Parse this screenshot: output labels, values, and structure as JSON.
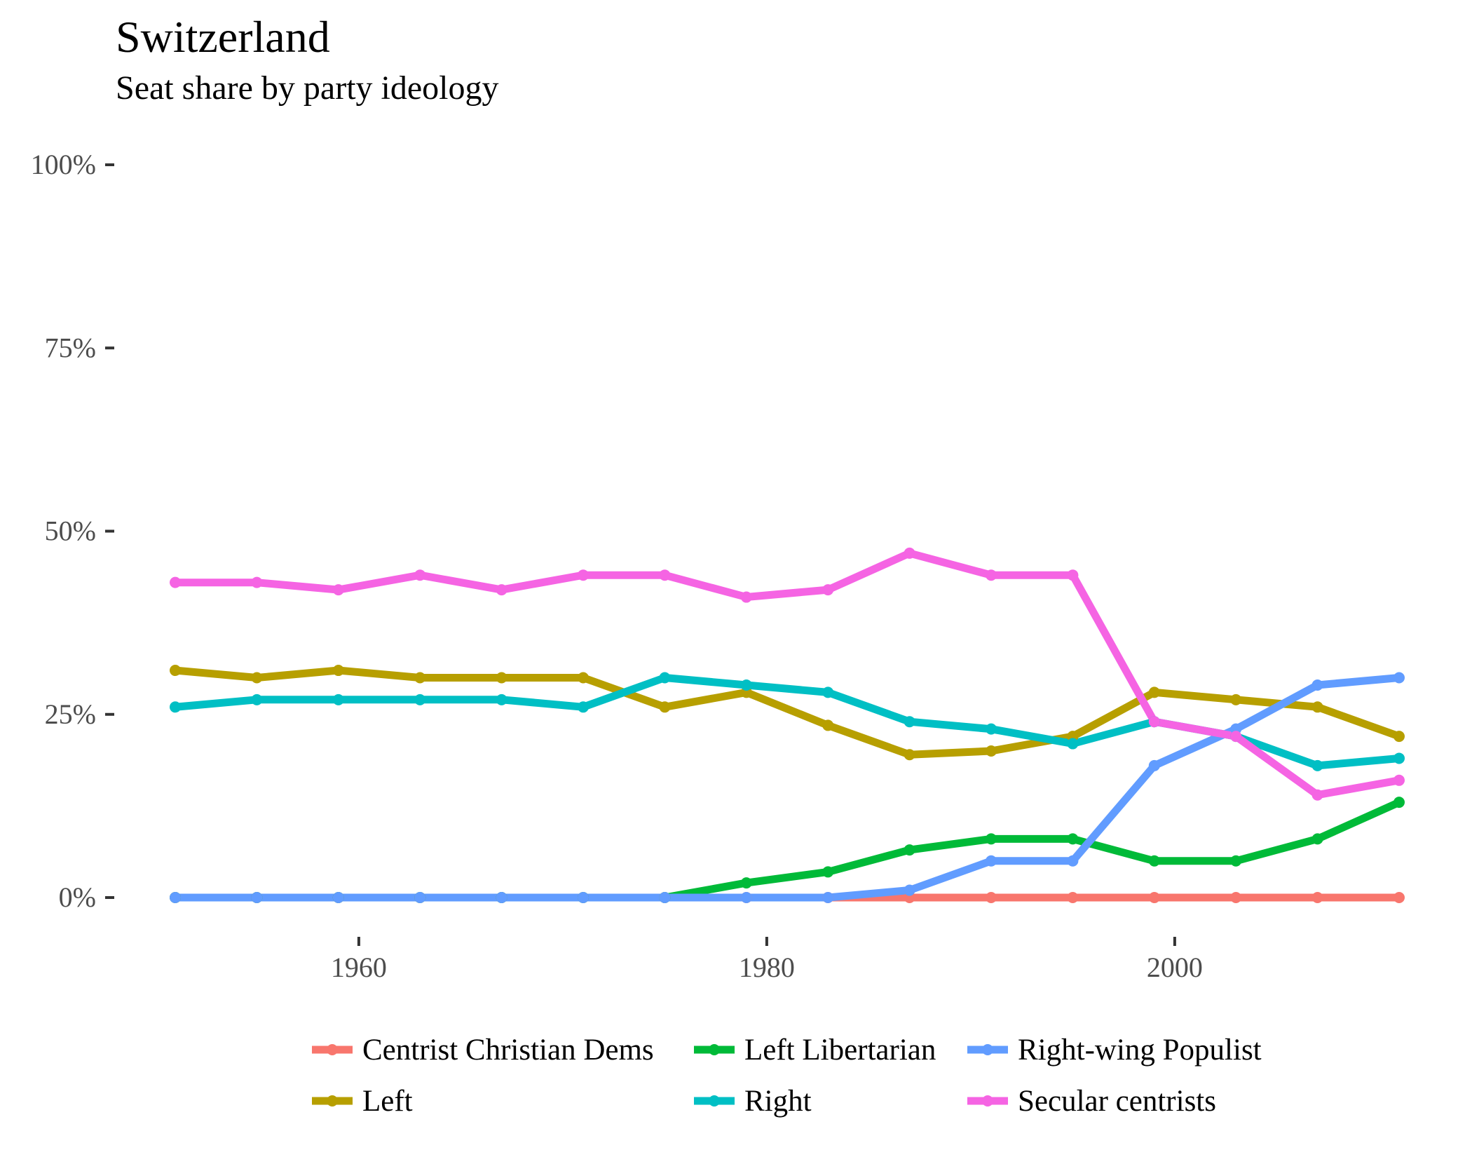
{
  "chart_data": {
    "type": "line",
    "title": "Switzerland",
    "subtitle": "Seat share by party ideology",
    "xlabel": "",
    "ylabel": "",
    "xlim": [
      1950.5,
      2012.5
    ],
    "ylim": [
      0,
      1
    ],
    "x_ticks": [
      1960,
      1980,
      2000
    ],
    "x_tick_labels": [
      "1960",
      "1980",
      "2000"
    ],
    "y_ticks": [
      0,
      0.25,
      0.5,
      0.75,
      1
    ],
    "y_tick_labels": [
      "0%",
      "25%",
      "50%",
      "75%",
      "100%"
    ],
    "grid": false,
    "legend_position": "bottom",
    "x": [
      1951,
      1955,
      1959,
      1963,
      1967,
      1971,
      1975,
      1979,
      1983,
      1987,
      1991,
      1995,
      1999,
      2003,
      2007,
      2011
    ],
    "series": [
      {
        "name": "Centrist Christian Dems",
        "color": "#F8766D",
        "values": [
          0,
          0,
          0,
          0,
          0,
          0,
          0,
          0,
          0,
          0,
          0,
          0,
          0,
          0,
          0,
          0
        ]
      },
      {
        "name": "Left",
        "color": "#B79F00",
        "values": [
          0.31,
          0.3,
          0.31,
          0.3,
          0.3,
          0.3,
          0.26,
          0.28,
          0.235,
          0.195,
          0.2,
          0.22,
          0.28,
          0.27,
          0.26,
          0.22
        ]
      },
      {
        "name": "Left Libertarian",
        "color": "#00BA38",
        "values": [
          0,
          0,
          0,
          0,
          0,
          0,
          0,
          0.02,
          0.035,
          0.065,
          0.08,
          0.08,
          0.05,
          0.05,
          0.08,
          0.13
        ]
      },
      {
        "name": "Right",
        "color": "#00BFC4",
        "values": [
          0.26,
          0.27,
          0.27,
          0.27,
          0.27,
          0.26,
          0.3,
          0.29,
          0.28,
          0.24,
          0.23,
          0.21,
          0.24,
          0.22,
          0.18,
          0.19
        ]
      },
      {
        "name": "Right-wing Populist",
        "color": "#619CFF",
        "values": [
          0,
          0,
          0,
          0,
          0,
          0,
          0,
          0,
          0,
          0.01,
          0.05,
          0.05,
          0.18,
          0.23,
          0.29,
          0.3
        ]
      },
      {
        "name": "Secular centrists",
        "color": "#F564E3",
        "values": [
          0.43,
          0.43,
          0.42,
          0.44,
          0.42,
          0.44,
          0.44,
          0.41,
          0.42,
          0.47,
          0.44,
          0.44,
          0.24,
          0.22,
          0.14,
          0.16
        ]
      }
    ],
    "legend_order": [
      "Centrist Christian Dems",
      "Left Libertarian",
      "Right-wing Populist",
      "Left",
      "Right",
      "Secular centrists"
    ]
  }
}
